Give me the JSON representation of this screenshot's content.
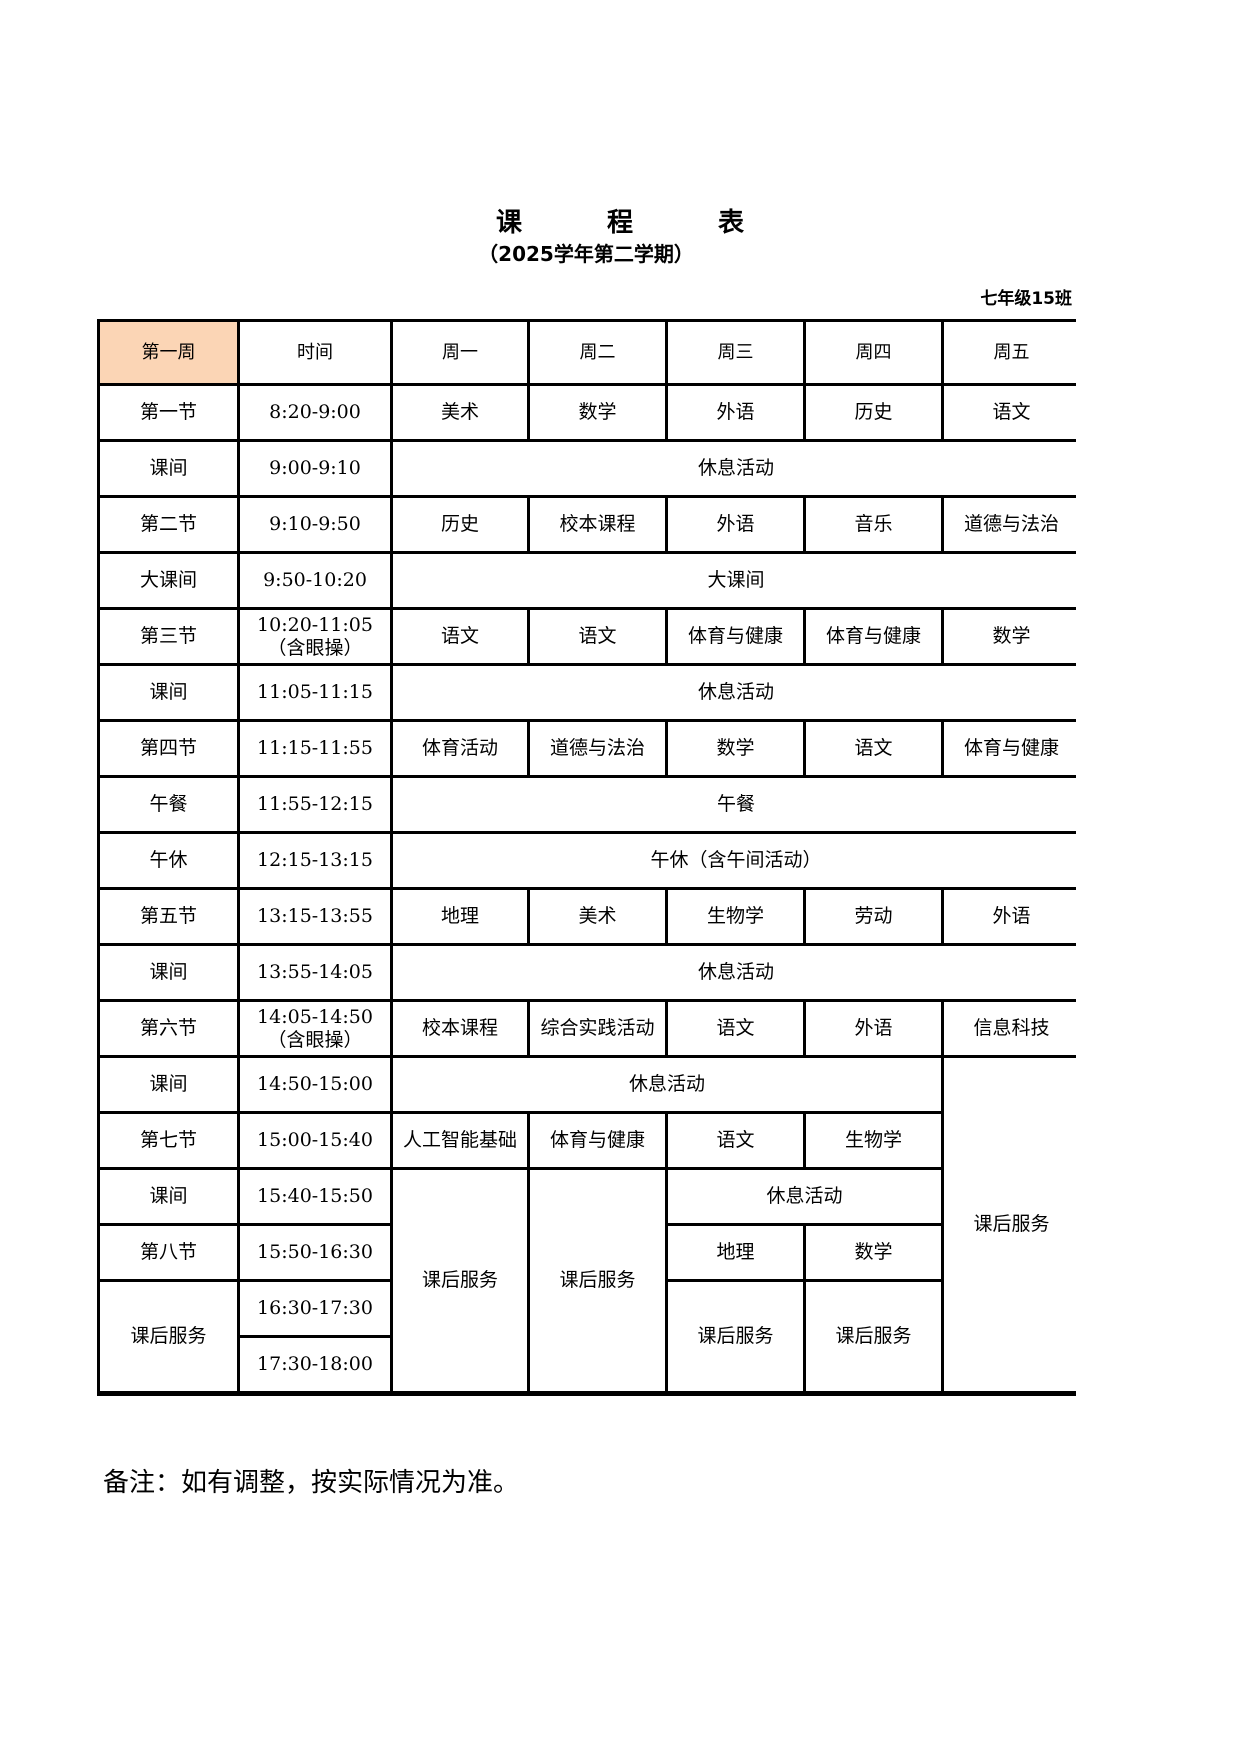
{
  "title": "课 程 表",
  "subtitle": "（2025学年第二学期）",
  "class_name": "七年级15班",
  "header": {
    "week": "第一周",
    "time": "时间",
    "days": [
      "周一",
      "周二",
      "周三",
      "周四",
      "周五"
    ]
  },
  "header_color": "#FBD5B5",
  "rows": [
    {
      "label": "第一节",
      "time": "8:20-9:00",
      "cells": [
        "美术",
        "数学",
        "外语",
        "历史",
        "语文"
      ]
    },
    {
      "label": "课间",
      "time": "9:00-9:10",
      "cells": [
        "休息活动"
      ]
    },
    {
      "label": "第二节",
      "time": "9:10-9:50",
      "cells": [
        "历史",
        "校本课程",
        "外语",
        "音乐",
        "道德与法治"
      ]
    },
    {
      "label": "大课间",
      "time": "9:50-10:20",
      "cells": [
        "大课间"
      ]
    },
    {
      "label": "第三节",
      "time": "10:20-11:05\n（含眼操）",
      "cells": [
        "语文",
        "语文",
        "体育与健康",
        "体育与健康",
        "数学"
      ]
    },
    {
      "label": "课间",
      "time": "11:05-11:15",
      "cells": [
        "休息活动"
      ]
    },
    {
      "label": "第四节",
      "time": "11:15-11:55",
      "cells": [
        "体育活动",
        "道德与法治",
        "数学",
        "语文",
        "体育与健康"
      ]
    },
    {
      "label": "午餐",
      "time": "11:55-12:15",
      "cells": [
        "午餐"
      ]
    },
    {
      "label": "午休",
      "time": "12:15-13:15",
      "cells": [
        "午休（含午间活动）"
      ]
    },
    {
      "label": "第五节",
      "time": "13:15-13:55",
      "cells": [
        "地理",
        "美术",
        "生物学",
        "劳动",
        "外语"
      ]
    },
    {
      "label": "课间",
      "time": "13:55-14:05",
      "cells": [
        "休息活动"
      ]
    },
    {
      "label": "第六节",
      "time": "14:05-14:50\n（含眼操）",
      "cells": [
        "校本课程",
        "综合实践活动",
        "语文",
        "外语",
        "信息科技"
      ]
    },
    {
      "label": "课间",
      "time": "14:50-15:00",
      "cells": [
        "休息活动",
        "课后服务"
      ]
    },
    {
      "label": "第七节",
      "time": "15:00-15:40",
      "cells": [
        "人工智能基础",
        "体育与健康",
        "语文",
        "生物学"
      ]
    },
    {
      "label": "课间",
      "time": "15:40-15:50",
      "cells": [
        "课后服务",
        "课后服务",
        "休息活动"
      ]
    },
    {
      "label": "第八节",
      "time": "15:50-16:30",
      "cells": [
        "地理",
        "数学"
      ]
    },
    {
      "label": "课后服务",
      "time": "16:30-17:30",
      "cells": [
        "课后服务",
        "课后服务"
      ]
    },
    {
      "label": "",
      "time": "17:30-18:00",
      "cells": []
    }
  ],
  "note": "备注：如有调整，按实际情况为准。"
}
